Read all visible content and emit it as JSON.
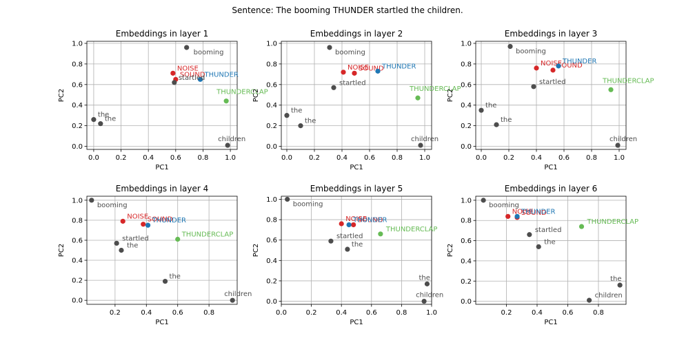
{
  "suptitle": "Sentence: The booming THUNDER startled the children.",
  "colors": {
    "context": "#4d4d4d",
    "noise": "#d62728",
    "sound": "#d62728",
    "thunder": "#1f77b4",
    "thunderclap": "#66bb55"
  },
  "chart_data": [
    {
      "type": "scatter",
      "title": "Embeddings in layer 1",
      "xlabel": "PC1",
      "ylabel": "PC2",
      "xlim": [
        -0.05,
        1.05
      ],
      "ylim": [
        -0.03,
        1.02
      ],
      "xticks": [
        0.0,
        0.2,
        0.4,
        0.6,
        0.8,
        1.0
      ],
      "yticks": [
        0.0,
        0.2,
        0.4,
        0.6,
        0.8,
        1.0
      ],
      "grid": true,
      "points": [
        {
          "label": "booming",
          "x": 0.68,
          "y": 0.96,
          "group": "context"
        },
        {
          "label": "NOISE",
          "x": 0.58,
          "y": 0.71,
          "group": "noise"
        },
        {
          "label": "SOUND",
          "x": 0.6,
          "y": 0.65,
          "group": "sound"
        },
        {
          "label": "THUNDER",
          "x": 0.78,
          "y": 0.65,
          "group": "thunder"
        },
        {
          "label": "startled",
          "x": 0.59,
          "y": 0.62,
          "group": "context"
        },
        {
          "label": "THUNDERCLAP",
          "x": 0.97,
          "y": 0.44,
          "group": "thunderclap"
        },
        {
          "label": "the",
          "x": 0.0,
          "y": 0.26,
          "group": "context"
        },
        {
          "label": "the",
          "x": 0.05,
          "y": 0.22,
          "group": "context"
        },
        {
          "label": "children",
          "x": 0.98,
          "y": 0.01,
          "group": "context"
        }
      ]
    },
    {
      "type": "scatter",
      "title": "Embeddings in layer 2",
      "xlabel": "PC1",
      "ylabel": "PC2",
      "xlim": [
        -0.04,
        1.05
      ],
      "ylim": [
        -0.03,
        1.02
      ],
      "xticks": [
        0.0,
        0.2,
        0.4,
        0.6,
        0.8,
        1.0
      ],
      "yticks": [
        0.0,
        0.2,
        0.4,
        0.6,
        0.8,
        1.0
      ],
      "grid": true,
      "points": [
        {
          "label": "booming",
          "x": 0.31,
          "y": 0.96,
          "group": "context"
        },
        {
          "label": "NOISE",
          "x": 0.41,
          "y": 0.72,
          "group": "noise"
        },
        {
          "label": "SOUND",
          "x": 0.49,
          "y": 0.71,
          "group": "sound"
        },
        {
          "label": "THUNDER",
          "x": 0.66,
          "y": 0.73,
          "group": "thunder"
        },
        {
          "label": "startled",
          "x": 0.34,
          "y": 0.57,
          "group": "context"
        },
        {
          "label": "THUNDERCLAP",
          "x": 0.95,
          "y": 0.47,
          "group": "thunderclap"
        },
        {
          "label": "the",
          "x": 0.0,
          "y": 0.3,
          "group": "context"
        },
        {
          "label": "the",
          "x": 0.1,
          "y": 0.2,
          "group": "context"
        },
        {
          "label": "children",
          "x": 0.97,
          "y": 0.01,
          "group": "context"
        }
      ]
    },
    {
      "type": "scatter",
      "title": "Embeddings in layer 3",
      "xlabel": "PC1",
      "ylabel": "PC2",
      "xlim": [
        -0.04,
        1.05
      ],
      "ylim": [
        -0.03,
        1.02
      ],
      "xticks": [
        0.0,
        0.2,
        0.4,
        0.6,
        0.8,
        1.0
      ],
      "yticks": [
        0.0,
        0.2,
        0.4,
        0.6,
        0.8,
        1.0
      ],
      "grid": true,
      "points": [
        {
          "label": "booming",
          "x": 0.21,
          "y": 0.97,
          "group": "context"
        },
        {
          "label": "NOISE",
          "x": 0.4,
          "y": 0.76,
          "group": "noise"
        },
        {
          "label": "SOUND",
          "x": 0.52,
          "y": 0.74,
          "group": "sound"
        },
        {
          "label": "THUNDER",
          "x": 0.56,
          "y": 0.78,
          "group": "thunder"
        },
        {
          "label": "startled",
          "x": 0.38,
          "y": 0.58,
          "group": "context"
        },
        {
          "label": "THUNDERCLAP",
          "x": 0.94,
          "y": 0.55,
          "group": "thunderclap"
        },
        {
          "label": "the",
          "x": 0.0,
          "y": 0.35,
          "group": "context"
        },
        {
          "label": "the",
          "x": 0.11,
          "y": 0.21,
          "group": "context"
        },
        {
          "label": "children",
          "x": 0.99,
          "y": 0.01,
          "group": "context"
        }
      ]
    },
    {
      "type": "scatter",
      "title": "Embeddings in layer 4",
      "xlabel": "PC1",
      "ylabel": "PC2",
      "xlim": [
        0.02,
        0.98
      ],
      "ylim": [
        -0.04,
        1.04
      ],
      "xticks": [
        0.2,
        0.4,
        0.6,
        0.8
      ],
      "yticks": [
        0.0,
        0.2,
        0.4,
        0.6,
        0.8,
        1.0
      ],
      "grid": true,
      "points": [
        {
          "label": "booming",
          "x": 0.05,
          "y": 1.0,
          "group": "context"
        },
        {
          "label": "NOISE",
          "x": 0.25,
          "y": 0.79,
          "group": "noise"
        },
        {
          "label": "SOUND",
          "x": 0.38,
          "y": 0.76,
          "group": "sound"
        },
        {
          "label": "THUNDER",
          "x": 0.41,
          "y": 0.75,
          "group": "thunder"
        },
        {
          "label": "startled",
          "x": 0.21,
          "y": 0.57,
          "group": "context"
        },
        {
          "label": "the",
          "x": 0.24,
          "y": 0.5,
          "group": "context"
        },
        {
          "label": "THUNDERCLAP",
          "x": 0.6,
          "y": 0.61,
          "group": "thunderclap"
        },
        {
          "label": "the",
          "x": 0.52,
          "y": 0.19,
          "group": "context"
        },
        {
          "label": "children",
          "x": 0.95,
          "y": 0.0,
          "group": "context"
        }
      ]
    },
    {
      "type": "scatter",
      "title": "Embeddings in layer 5",
      "xlabel": "PC1",
      "ylabel": "PC2",
      "xlim": [
        0.0,
        1.0
      ],
      "ylim": [
        -0.03,
        1.03
      ],
      "xticks": [
        0.0,
        0.2,
        0.4,
        0.6,
        0.8,
        1.0
      ],
      "yticks": [
        0.0,
        0.2,
        0.4,
        0.6,
        0.8,
        1.0
      ],
      "grid": true,
      "points": [
        {
          "label": "booming",
          "x": 0.04,
          "y": 1.0,
          "group": "context"
        },
        {
          "label": "NOISE",
          "x": 0.4,
          "y": 0.76,
          "group": "noise"
        },
        {
          "label": "SOUND",
          "x": 0.48,
          "y": 0.75,
          "group": "sound"
        },
        {
          "label": "THUNDER",
          "x": 0.45,
          "y": 0.75,
          "group": "thunder"
        },
        {
          "label": "startled",
          "x": 0.33,
          "y": 0.59,
          "group": "context"
        },
        {
          "label": "THUNDERCLAP",
          "x": 0.66,
          "y": 0.66,
          "group": "thunderclap"
        },
        {
          "label": "the",
          "x": 0.44,
          "y": 0.51,
          "group": "context"
        },
        {
          "label": "the",
          "x": 0.97,
          "y": 0.17,
          "group": "context"
        },
        {
          "label": "children",
          "x": 0.95,
          "y": 0.0,
          "group": "context"
        }
      ]
    },
    {
      "type": "scatter",
      "title": "Embeddings in layer 6",
      "xlabel": "PC1",
      "ylabel": "PC2",
      "xlim": [
        0.0,
        0.98
      ],
      "ylim": [
        -0.03,
        1.04
      ],
      "xticks": [
        0.2,
        0.4,
        0.6,
        0.8
      ],
      "yticks": [
        0.0,
        0.2,
        0.4,
        0.6,
        0.8,
        1.0
      ],
      "grid": true,
      "points": [
        {
          "label": "booming",
          "x": 0.05,
          "y": 1.0,
          "group": "context"
        },
        {
          "label": "NOISE",
          "x": 0.21,
          "y": 0.84,
          "group": "noise"
        },
        {
          "label": "SOUND",
          "x": 0.27,
          "y": 0.83,
          "group": "sound"
        },
        {
          "label": "THUNDER",
          "x": 0.27,
          "y": 0.84,
          "group": "thunder"
        },
        {
          "label": "startled",
          "x": 0.35,
          "y": 0.66,
          "group": "context"
        },
        {
          "label": "the",
          "x": 0.41,
          "y": 0.54,
          "group": "context"
        },
        {
          "label": "THUNDERCLAP",
          "x": 0.69,
          "y": 0.74,
          "group": "thunderclap"
        },
        {
          "label": "the",
          "x": 0.94,
          "y": 0.16,
          "group": "context"
        },
        {
          "label": "children",
          "x": 0.74,
          "y": 0.01,
          "group": "context"
        }
      ]
    }
  ]
}
